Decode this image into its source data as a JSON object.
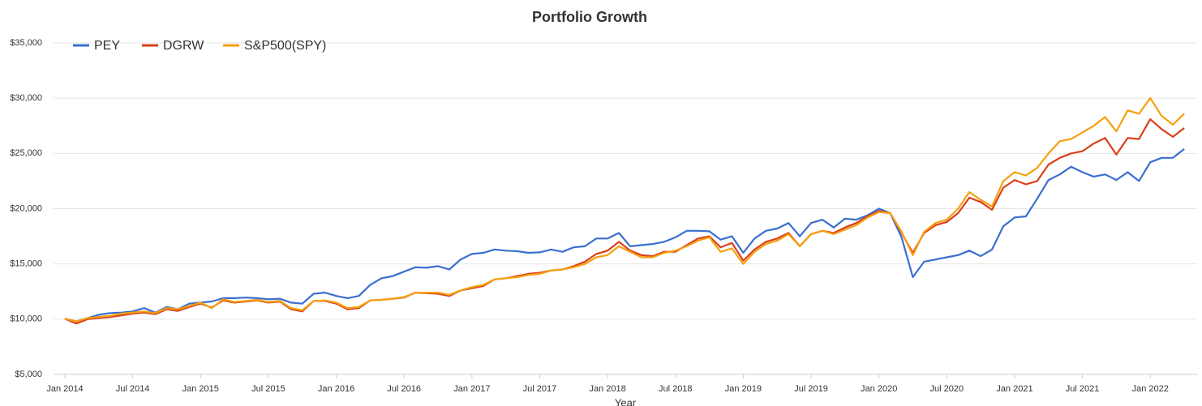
{
  "chart_data": {
    "type": "line",
    "title": "Portfolio Growth",
    "x_label": "Year",
    "x": [
      "2014-01",
      "2014-02",
      "2014-03",
      "2014-04",
      "2014-05",
      "2014-06",
      "2014-07",
      "2014-08",
      "2014-09",
      "2014-10",
      "2014-11",
      "2014-12",
      "2015-01",
      "2015-02",
      "2015-03",
      "2015-04",
      "2015-05",
      "2015-06",
      "2015-07",
      "2015-08",
      "2015-09",
      "2015-10",
      "2015-11",
      "2015-12",
      "2016-01",
      "2016-02",
      "2016-03",
      "2016-04",
      "2016-05",
      "2016-06",
      "2016-07",
      "2016-08",
      "2016-09",
      "2016-10",
      "2016-11",
      "2016-12",
      "2017-01",
      "2017-02",
      "2017-03",
      "2017-04",
      "2017-05",
      "2017-06",
      "2017-07",
      "2017-08",
      "2017-09",
      "2017-10",
      "2017-11",
      "2017-12",
      "2018-01",
      "2018-02",
      "2018-03",
      "2018-04",
      "2018-05",
      "2018-06",
      "2018-07",
      "2018-08",
      "2018-09",
      "2018-10",
      "2018-11",
      "2018-12",
      "2019-01",
      "2019-02",
      "2019-03",
      "2019-04",
      "2019-05",
      "2019-06",
      "2019-07",
      "2019-08",
      "2019-09",
      "2019-10",
      "2019-11",
      "2019-12",
      "2020-01",
      "2020-02",
      "2020-03",
      "2020-04",
      "2020-05",
      "2020-06",
      "2020-07",
      "2020-08",
      "2020-09",
      "2020-10",
      "2020-11",
      "2020-12",
      "2021-01",
      "2021-02",
      "2021-03",
      "2021-04",
      "2021-05",
      "2021-06",
      "2021-07",
      "2021-08",
      "2021-09",
      "2021-10",
      "2021-11",
      "2021-12",
      "2022-01",
      "2022-02",
      "2022-03",
      "2022-04"
    ],
    "xticks": [
      {
        "value": "2014-01",
        "label": "Jan 2014"
      },
      {
        "value": "2014-07",
        "label": "Jul 2014"
      },
      {
        "value": "2015-01",
        "label": "Jan 2015"
      },
      {
        "value": "2015-07",
        "label": "Jul 2015"
      },
      {
        "value": "2016-01",
        "label": "Jan 2016"
      },
      {
        "value": "2016-07",
        "label": "Jul 2016"
      },
      {
        "value": "2017-01",
        "label": "Jan 2017"
      },
      {
        "value": "2017-07",
        "label": "Jul 2017"
      },
      {
        "value": "2018-01",
        "label": "Jan 2018"
      },
      {
        "value": "2018-07",
        "label": "Jul 2018"
      },
      {
        "value": "2019-01",
        "label": "Jan 2019"
      },
      {
        "value": "2019-07",
        "label": "Jul 2019"
      },
      {
        "value": "2020-01",
        "label": "Jan 2020"
      },
      {
        "value": "2020-07",
        "label": "Jul 2020"
      },
      {
        "value": "2021-01",
        "label": "Jan 2021"
      },
      {
        "value": "2021-07",
        "label": "Jul 2021"
      },
      {
        "value": "2022-01",
        "label": "Jan 2022"
      }
    ],
    "ylim": [
      5000,
      35000
    ],
    "yticks": [
      {
        "value": 5000,
        "label": "$5,000"
      },
      {
        "value": 10000,
        "label": "$10,000"
      },
      {
        "value": 15000,
        "label": "$15,000"
      },
      {
        "value": 20000,
        "label": "$20,000"
      },
      {
        "value": 25000,
        "label": "$25,000"
      },
      {
        "value": 30000,
        "label": "$30,000"
      },
      {
        "value": 35000,
        "label": "$35,000"
      }
    ],
    "grid": true,
    "legend": "top-left",
    "series": [
      {
        "name": "PEY",
        "color": "#3b6fcf",
        "values": [
          10050,
          9800,
          10100,
          10400,
          10550,
          10600,
          10700,
          11000,
          10600,
          11100,
          10900,
          11400,
          11500,
          11600,
          11900,
          11900,
          11950,
          11900,
          11800,
          11850,
          11500,
          11400,
          12300,
          12400,
          12100,
          11900,
          12100,
          13100,
          13700,
          13900,
          14300,
          14700,
          14650,
          14800,
          14500,
          15400,
          15900,
          16000,
          16300,
          16200,
          16150,
          16000,
          16050,
          16300,
          16100,
          16500,
          16600,
          17300,
          17300,
          17800,
          16600,
          16700,
          16800,
          17000,
          17400,
          18000,
          18000,
          17950,
          17200,
          17500,
          16000,
          17300,
          18000,
          18200,
          18700,
          17500,
          18700,
          19000,
          18300,
          19100,
          19000,
          19400,
          20000,
          19600,
          17400,
          13800,
          15200,
          15400,
          15600,
          15800,
          16200,
          15700,
          16300,
          18400,
          19200,
          19300,
          20900,
          22600,
          23100,
          23800,
          23300,
          22900,
          23100,
          22600,
          23300,
          22500,
          24200,
          24600,
          24600,
          25400
        ]
      },
      {
        "name": "DGRW",
        "color": "#d9401a",
        "values": [
          10050,
          9600,
          10000,
          10100,
          10200,
          10350,
          10500,
          10600,
          10450,
          10900,
          10750,
          11100,
          11400,
          11050,
          11700,
          11500,
          11600,
          11700,
          11500,
          11600,
          10900,
          10700,
          11650,
          11650,
          11400,
          10900,
          11000,
          11700,
          11750,
          11850,
          11950,
          12400,
          12350,
          12300,
          12100,
          12600,
          12800,
          13000,
          13600,
          13700,
          13900,
          14100,
          14200,
          14400,
          14500,
          14800,
          15200,
          15900,
          16200,
          17000,
          16200,
          15800,
          15700,
          16100,
          16100,
          16700,
          17300,
          17500,
          16500,
          16900,
          15300,
          16300,
          17000,
          17300,
          17800,
          16600,
          17700,
          18000,
          17800,
          18300,
          18700,
          19300,
          19800,
          19600,
          17800,
          16000,
          17800,
          18500,
          18800,
          19600,
          21000,
          20600,
          19900,
          21900,
          22600,
          22200,
          22500,
          24000,
          24600,
          25000,
          25200,
          25900,
          26400,
          24900,
          26400,
          26300,
          28100,
          27200,
          26500,
          27300
        ]
      },
      {
        "name": "S&P500(SPY)",
        "color": "#f5a00f",
        "values": [
          10050,
          9800,
          10100,
          10200,
          10300,
          10500,
          10600,
          10700,
          10550,
          11000,
          10900,
          11200,
          11500,
          11000,
          11800,
          11550,
          11650,
          11750,
          11550,
          11650,
          11000,
          10800,
          11650,
          11700,
          11500,
          11000,
          11100,
          11700,
          11750,
          11850,
          12000,
          12400,
          12400,
          12400,
          12200,
          12600,
          12900,
          13100,
          13600,
          13700,
          13800,
          14000,
          14100,
          14400,
          14500,
          14700,
          15000,
          15600,
          15800,
          16600,
          16100,
          15600,
          15600,
          16000,
          16200,
          16600,
          17100,
          17400,
          16100,
          16400,
          15000,
          16100,
          16800,
          17100,
          17700,
          16600,
          17700,
          18000,
          17700,
          18100,
          18500,
          19200,
          19700,
          19600,
          17900,
          15800,
          17900,
          18700,
          19000,
          20000,
          21500,
          20800,
          20200,
          22500,
          23300,
          23000,
          23700,
          25000,
          26100,
          26300,
          26900,
          27500,
          28300,
          27000,
          28900,
          28600,
          30000,
          28400,
          27600,
          28600
        ]
      }
    ]
  }
}
